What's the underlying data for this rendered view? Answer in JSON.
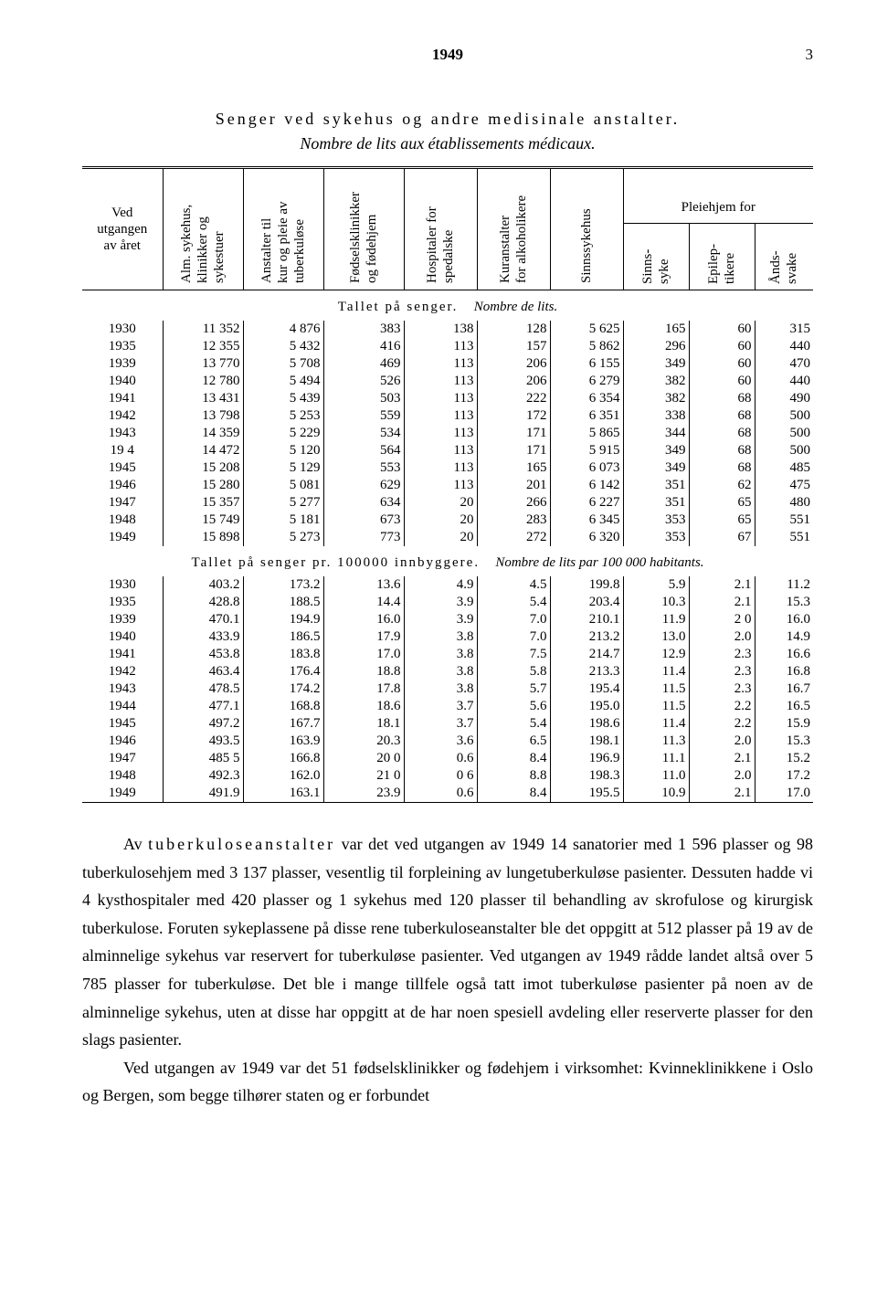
{
  "page": {
    "year_header": "1949",
    "number": "3"
  },
  "title": "Senger ved sykehus og andre medisinale anstalter.",
  "subtitle": "Nombre de lits aux établissements médicaux.",
  "columns": {
    "c0": "Ved utgangen\nav året",
    "c1": "Alm. sykehus,\nklinikker og\nsykestuer",
    "c2": "Anstalter til\nkur og pleie av\ntuberkuløse",
    "c3": "Fødselsklinikker\nog fødehjem",
    "c4": "Hospitaler for\nspedalske",
    "c5": "Kuranstalter\nfor alkoholikere",
    "c6": "Sinnssykehus",
    "pleie": "Pleiehjem for",
    "c7": "Sinns-\nsyke",
    "c8": "Epilep-\ntikere",
    "c9": "Ånds-\nsvake"
  },
  "section1": {
    "a": "Tallet på senger.",
    "b": "Nombre de lits."
  },
  "section2": {
    "a": "Tallet på senger pr. 100000 innbyggere.",
    "b": "Nombre de lits par 100 000 habitants."
  },
  "abs": [
    {
      "y": "1930",
      "c1": "11 352",
      "c2": "4 876",
      "c3": "383",
      "c4": "138",
      "c5": "128",
      "c6": "5 625",
      "c7": "165",
      "c8": "60",
      "c9": "315"
    },
    {
      "y": "1935",
      "c1": "12 355",
      "c2": "5 432",
      "c3": "416",
      "c4": "113",
      "c5": "157",
      "c6": "5 862",
      "c7": "296",
      "c8": "60",
      "c9": "440"
    },
    {
      "y": "1939",
      "c1": "13 770",
      "c2": "5 708",
      "c3": "469",
      "c4": "113",
      "c5": "206",
      "c6": "6 155",
      "c7": "349",
      "c8": "60",
      "c9": "470"
    },
    {
      "y": "1940",
      "c1": "12 780",
      "c2": "5 494",
      "c3": "526",
      "c4": "113",
      "c5": "206",
      "c6": "6 279",
      "c7": "382",
      "c8": "60",
      "c9": "440"
    },
    {
      "y": "1941",
      "c1": "13 431",
      "c2": "5 439",
      "c3": "503",
      "c4": "113",
      "c5": "222",
      "c6": "6 354",
      "c7": "382",
      "c8": "68",
      "c9": "490"
    },
    {
      "y": "1942",
      "c1": "13 798",
      "c2": "5 253",
      "c3": "559",
      "c4": "113",
      "c5": "172",
      "c6": "6 351",
      "c7": "338",
      "c8": "68",
      "c9": "500"
    },
    {
      "y": "1943",
      "c1": "14 359",
      "c2": "5 229",
      "c3": "534",
      "c4": "113",
      "c5": "171",
      "c6": "5 865",
      "c7": "344",
      "c8": "68",
      "c9": "500"
    },
    {
      "y": "19 4",
      "c1": "14 472",
      "c2": "5 120",
      "c3": "564",
      "c4": "113",
      "c5": "171",
      "c6": "5 915",
      "c7": "349",
      "c8": "68",
      "c9": "500"
    },
    {
      "y": "1945",
      "c1": "15 208",
      "c2": "5 129",
      "c3": "553",
      "c4": "113",
      "c5": "165",
      "c6": "6 073",
      "c7": "349",
      "c8": "68",
      "c9": "485"
    },
    {
      "y": "1946",
      "c1": "15 280",
      "c2": "5 081",
      "c3": "629",
      "c4": "113",
      "c5": "201",
      "c6": "6 142",
      "c7": "351",
      "c8": "62",
      "c9": "475"
    },
    {
      "y": "1947",
      "c1": "15 357",
      "c2": "5 277",
      "c3": "634",
      "c4": "20",
      "c5": "266",
      "c6": "6 227",
      "c7": "351",
      "c8": "65",
      "c9": "480"
    },
    {
      "y": "1948",
      "c1": "15 749",
      "c2": "5 181",
      "c3": "673",
      "c4": "20",
      "c5": "283",
      "c6": "6 345",
      "c7": "353",
      "c8": "65",
      "c9": "551"
    },
    {
      "y": "1949",
      "c1": "15 898",
      "c2": "5 273",
      "c3": "773",
      "c4": "20",
      "c5": "272",
      "c6": "6 320",
      "c7": "353",
      "c8": "67",
      "c9": "551"
    }
  ],
  "rel": [
    {
      "y": "1930",
      "c1": "403.2",
      "c2": "173.2",
      "c3": "13.6",
      "c4": "4.9",
      "c5": "4.5",
      "c6": "199.8",
      "c7": "5.9",
      "c8": "2.1",
      "c9": "11.2"
    },
    {
      "y": "1935",
      "c1": "428.8",
      "c2": "188.5",
      "c3": "14.4",
      "c4": "3.9",
      "c5": "5.4",
      "c6": "203.4",
      "c7": "10.3",
      "c8": "2.1",
      "c9": "15.3"
    },
    {
      "y": "1939",
      "c1": "470.1",
      "c2": "194.9",
      "c3": "16.0",
      "c4": "3.9",
      "c5": "7.0",
      "c6": "210.1",
      "c7": "11.9",
      "c8": "2 0",
      "c9": "16.0"
    },
    {
      "y": "1940",
      "c1": "433.9",
      "c2": "186.5",
      "c3": "17.9",
      "c4": "3.8",
      "c5": "7.0",
      "c6": "213.2",
      "c7": "13.0",
      "c8": "2.0",
      "c9": "14.9"
    },
    {
      "y": "1941",
      "c1": "453.8",
      "c2": "183.8",
      "c3": "17.0",
      "c4": "3.8",
      "c5": "7.5",
      "c6": "214.7",
      "c7": "12.9",
      "c8": "2.3",
      "c9": "16.6"
    },
    {
      "y": "1942",
      "c1": "463.4",
      "c2": "176.4",
      "c3": "18.8",
      "c4": "3.8",
      "c5": "5.8",
      "c6": "213.3",
      "c7": "11.4",
      "c8": "2.3",
      "c9": "16.8"
    },
    {
      "y": "1943",
      "c1": "478.5",
      "c2": "174.2",
      "c3": "17.8",
      "c4": "3.8",
      "c5": "5.7",
      "c6": "195.4",
      "c7": "11.5",
      "c8": "2.3",
      "c9": "16.7"
    },
    {
      "y": "1944",
      "c1": "477.1",
      "c2": "168.8",
      "c3": "18.6",
      "c4": "3.7",
      "c5": "5.6",
      "c6": "195.0",
      "c7": "11.5",
      "c8": "2.2",
      "c9": "16.5"
    },
    {
      "y": "1945",
      "c1": "497.2",
      "c2": "167.7",
      "c3": "18.1",
      "c4": "3.7",
      "c5": "5.4",
      "c6": "198.6",
      "c7": "11.4",
      "c8": "2.2",
      "c9": "15.9"
    },
    {
      "y": "1946",
      "c1": "493.5",
      "c2": "163.9",
      "c3": "20.3",
      "c4": "3.6",
      "c5": "6.5",
      "c6": "198.1",
      "c7": "11.3",
      "c8": "2.0",
      "c9": "15.3"
    },
    {
      "y": "1947",
      "c1": "485 5",
      "c2": "166.8",
      "c3": "20 0",
      "c4": "0.6",
      "c5": "8.4",
      "c6": "196.9",
      "c7": "11.1",
      "c8": "2.1",
      "c9": "15.2"
    },
    {
      "y": "1948",
      "c1": "492.3",
      "c2": "162.0",
      "c3": "21 0",
      "c4": "0 6",
      "c5": "8.8",
      "c6": "198.3",
      "c7": "11.0",
      "c8": "2.0",
      "c9": "17.2"
    },
    {
      "y": "1949",
      "c1": "491.9",
      "c2": "163.1",
      "c3": "23.9",
      "c4": "0.6",
      "c5": "8.4",
      "c6": "195.5",
      "c7": "10.9",
      "c8": "2.1",
      "c9": "17.0"
    }
  ],
  "para1_lead": "tuberkuloseanstalter",
  "para1": " var det ved utgangen av 1949 14 sanatorier med 1 596 plasser og 98 tuberkulosehjem med 3 137 plasser, vesentlig til forpleining av lungetuberkuløse pasienter. Dessuten hadde vi 4 kysthospitaler med 420 plasser og 1 sykehus med 120 plasser til behandling av skrofulose og kirurgisk tuberkulose. Foruten sykeplassene på disse rene tuberkuloseanstalter ble det oppgitt at 512 plasser på 19 av de alminnelige sykehus var reservert for tuberkuløse pasienter. Ved utgangen av 1949 rådde landet altså over 5 785 plasser for tuberkuløse. Det ble i mange tillfele også tatt imot tuberkuløse pasienter på noen av de alminnelige sykehus, uten at disse har oppgitt at de har noen spesiell avdeling eller reserverte plasser for den slags pasienter.",
  "para2": "Ved utgangen av 1949 var det 51 fødselsklinikker og fødehjem i virksomhet: Kvinneklinikkene i Oslo og Bergen, som begge tilhører staten og er forbundet"
}
